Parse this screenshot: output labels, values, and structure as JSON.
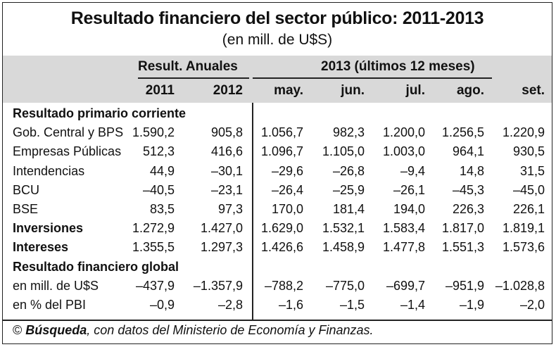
{
  "title": "Resultado financiero del sector público: 2011-2013",
  "subtitle": "(en mill. de U$S)",
  "header": {
    "group_annual": "Result. Anuales",
    "group_2013": "2013 (últimos 12 meses)",
    "columns": [
      "2011",
      "2012",
      "may.",
      "jun.",
      "jul.",
      "ago.",
      "set."
    ]
  },
  "rows": [
    {
      "label": "Resultado primario corriente",
      "bold": true,
      "values": []
    },
    {
      "label": "Gob. Central y BPS",
      "bold": false,
      "values": [
        "1.590,2",
        "905,8",
        "1.056,7",
        "982,3",
        "1.200,0",
        "1.256,5",
        "1.220,9"
      ]
    },
    {
      "label": "Empresas Públicas",
      "bold": false,
      "values": [
        "512,3",
        "416,6",
        "1.096,7",
        "1.105,0",
        "1.003,0",
        "964,1",
        "930,5"
      ]
    },
    {
      "label": "Intendencias",
      "bold": false,
      "values": [
        "44,9",
        "–30,1",
        "–29,6",
        "–26,8",
        "–9,4",
        "14,8",
        "31,5"
      ]
    },
    {
      "label": "BCU",
      "bold": false,
      "values": [
        "–40,5",
        "–23,1",
        "–26,4",
        "–25,9",
        "–26,1",
        "–45,3",
        "–45,0"
      ]
    },
    {
      "label": "BSE",
      "bold": false,
      "values": [
        "83,5",
        "97,3",
        "170,0",
        "181,4",
        "194,0",
        "226,3",
        "226,1"
      ]
    },
    {
      "label": "Inversiones",
      "bold": true,
      "values": [
        "1.272,9",
        "1.427,0",
        "1.629,0",
        "1.532,1",
        "1.583,4",
        "1.817,0",
        "1.819,1"
      ]
    },
    {
      "label": "Intereses",
      "bold": true,
      "values": [
        "1.355,5",
        "1.297,3",
        "1.426,6",
        "1.458,9",
        "1.477,8",
        "1.551,3",
        "1.573,6"
      ]
    },
    {
      "label": "Resultado financiero global",
      "bold": true,
      "values": []
    },
    {
      "label": "en mill. de U$S",
      "bold": false,
      "values": [
        "–437,9",
        "–1.357,9",
        "–788,2",
        "–775,0",
        "–699,7",
        "–951,9",
        "–1.028,8"
      ]
    },
    {
      "label": "en % del PBI",
      "bold": false,
      "values": [
        "–0,9",
        "–2,8",
        "–1,6",
        "–1,5",
        "–1,4",
        "–1,9",
        "–2,0"
      ]
    }
  ],
  "footer": {
    "copyright": "©",
    "source_name": "Búsqueda",
    "source_text": ", con datos del Ministerio de Economía y Finanzas."
  }
}
